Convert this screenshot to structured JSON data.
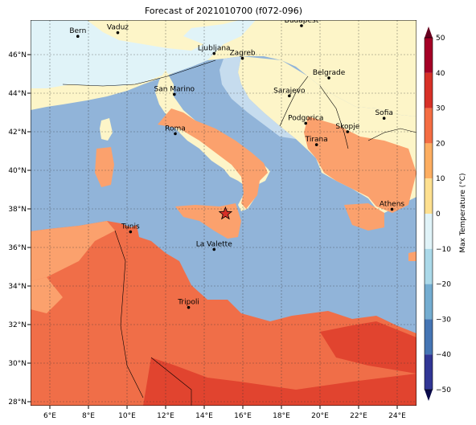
{
  "title": "Forecast of 2021010700 (f072-096)",
  "x_ticks": [
    "6°E",
    "8°E",
    "10°E",
    "12°E",
    "14°E",
    "16°E",
    "18°E",
    "20°E",
    "22°E",
    "24°E"
  ],
  "y_ticks": [
    "46°N",
    "44°N",
    "42°N",
    "40°N",
    "38°N",
    "36°N",
    "34°N",
    "32°N",
    "30°N",
    "28°N"
  ],
  "cities": [
    {
      "name": "Bern",
      "lon": 7.45,
      "lat": 46.95
    },
    {
      "name": "Vaduz",
      "lon": 9.52,
      "lat": 47.14
    },
    {
      "name": "Budapest",
      "lon": 19.04,
      "lat": 47.5
    },
    {
      "name": "Ljubljana",
      "lon": 14.51,
      "lat": 46.06
    },
    {
      "name": "Zagreb",
      "lon": 15.98,
      "lat": 45.81
    },
    {
      "name": "Belgrade",
      "lon": 20.46,
      "lat": 44.79
    },
    {
      "name": "San Marino",
      "lon": 12.45,
      "lat": 43.94
    },
    {
      "name": "Sarajevo",
      "lon": 18.41,
      "lat": 43.86
    },
    {
      "name": "Sofia",
      "lon": 23.32,
      "lat": 42.7
    },
    {
      "name": "Roma",
      "lon": 12.5,
      "lat": 41.9
    },
    {
      "name": "Podgorica",
      "lon": 19.26,
      "lat": 42.44
    },
    {
      "name": "Skopje",
      "lon": 21.43,
      "lat": 42.0
    },
    {
      "name": "Tirana",
      "lon": 19.82,
      "lat": 41.33
    },
    {
      "name": "Athens",
      "lon": 23.73,
      "lat": 37.98
    },
    {
      "name": "Tunis",
      "lon": 10.18,
      "lat": 36.81
    },
    {
      "name": "La Valette",
      "lon": 14.51,
      "lat": 35.9
    },
    {
      "name": "Tripoli",
      "lon": 13.19,
      "lat": 32.89
    }
  ],
  "marker": {
    "name": "star",
    "lon": 15.1,
    "lat": 37.75,
    "color": "#d62f27"
  },
  "colorbar": {
    "label": "Max Temperature (°C)",
    "ticks": [
      "50",
      "40",
      "30",
      "20",
      "10",
      "0",
      "−10",
      "−20",
      "−30",
      "−40",
      "−50"
    ],
    "colors": [
      "#313695",
      "#4575b4",
      "#74add1",
      "#abd9e9",
      "#e0f3f8",
      "#fee090",
      "#fdae61",
      "#f46d43",
      "#d73027",
      "#a50026"
    ]
  },
  "palette": {
    "sea": "#91b4d9",
    "cold_land": "#e0f3f8",
    "cool_land": "#fdf5c8",
    "mild_land": "#fba16d",
    "warm_land": "#f06e48",
    "hot_land": "#e1442f"
  }
}
